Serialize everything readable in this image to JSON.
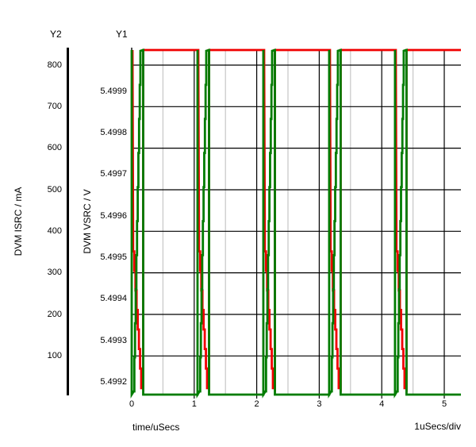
{
  "chart_data": {
    "type": "line",
    "title": "",
    "x_axis": {
      "label": "time/uSecs",
      "div_label": "1uSecs/div",
      "ticks": [
        "0",
        "1",
        "2",
        "3",
        "4",
        "5"
      ],
      "tick_values_us": [
        0,
        1,
        2,
        3,
        4,
        5
      ],
      "minor_tick_step_us": 0.5,
      "range_us": [
        0,
        5.27
      ],
      "units_per_div": 1
    },
    "y1_axis": {
      "name": "Y1",
      "label": "DVM VSRC / V",
      "unit": "V",
      "ticks": [
        "5.4999",
        "5.4998",
        "5.4997",
        "5.4996",
        "5.4995",
        "5.4994",
        "5.4993",
        "5.4992"
      ],
      "range": [
        5.49915,
        5.49995
      ]
    },
    "y2_axis": {
      "name": "Y2",
      "label": "DVM ISRC / mA",
      "unit": "mA",
      "ticks": [
        "800",
        "700",
        "600",
        "500",
        "400",
        "300",
        "200",
        "100"
      ],
      "range": [
        0,
        840
      ]
    },
    "series": [
      {
        "name": "DVM VSRC",
        "axis": "Y1",
        "color": "#f00000",
        "description": "Supply voltage: flat at ~5.5 V (clipped above 5.4999 at plot top) for ~0.87 us each cycle; during each load-current pulse it droops in a steep staircase from >5.4999 V down below 5.4992 V (clipped at plot bottom), then recovers instantly to 5.5 V."
      },
      {
        "name": "DVM ISRC",
        "axis": "Y2",
        "color": "#007c00",
        "description": "Load current: 0 mA between pulses (clipped below 100 mA at plot bottom); each cycle has a ~0.18 us pulse: an instantaneous full-scale spike followed by a steep staircase ramp rising above 800 mA (clipped at plot top), then an instantaneous fall back to 0 mA."
      }
    ],
    "pulses": {
      "period_us": 1.053,
      "pulse_width_us": 0.184,
      "pulse_start_times_us": [
        0,
        1.053,
        2.106,
        3.159,
        4.212
      ]
    },
    "grid": {
      "major_color": "#000000",
      "minor_color": "#c6c6c6",
      "horizontal_gridlines_follow": "Y2 ticks",
      "legend_position": "none"
    },
    "trace_colors": {
      "vsrc_red": "#f00000",
      "isrc_green": "#007c00"
    }
  }
}
